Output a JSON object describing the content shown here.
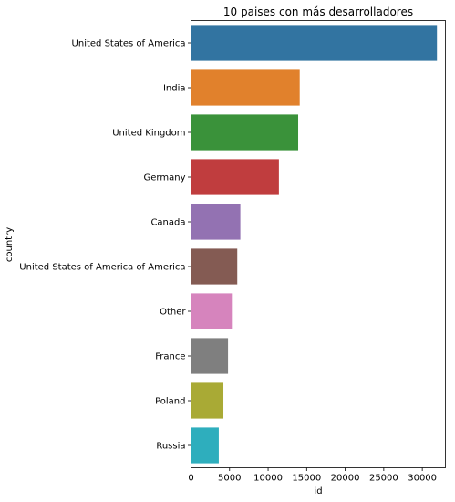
{
  "chart_data": {
    "type": "bar",
    "orientation": "horizontal",
    "title": "10 paises con más desarrolladores",
    "xlabel": "id",
    "ylabel": "country",
    "xlim": [
      0,
      33000
    ],
    "xticks": [
      0,
      5000,
      10000,
      15000,
      20000,
      25000,
      30000
    ],
    "grid": false,
    "categories": [
      "United States of America",
      "India",
      "United Kingdom",
      "Germany",
      "Canada",
      "United States of America of America",
      "Other",
      "France",
      "Poland",
      "Russia"
    ],
    "values": [
      31900,
      14100,
      13900,
      11400,
      6400,
      6000,
      5300,
      4800,
      4200,
      3600
    ],
    "colors": [
      "#3274a1",
      "#e1812c",
      "#3a923a",
      "#c03d3e",
      "#9372b2",
      "#845b53",
      "#d684bd",
      "#7f7f7f",
      "#a9aa35",
      "#2eaebd"
    ]
  }
}
